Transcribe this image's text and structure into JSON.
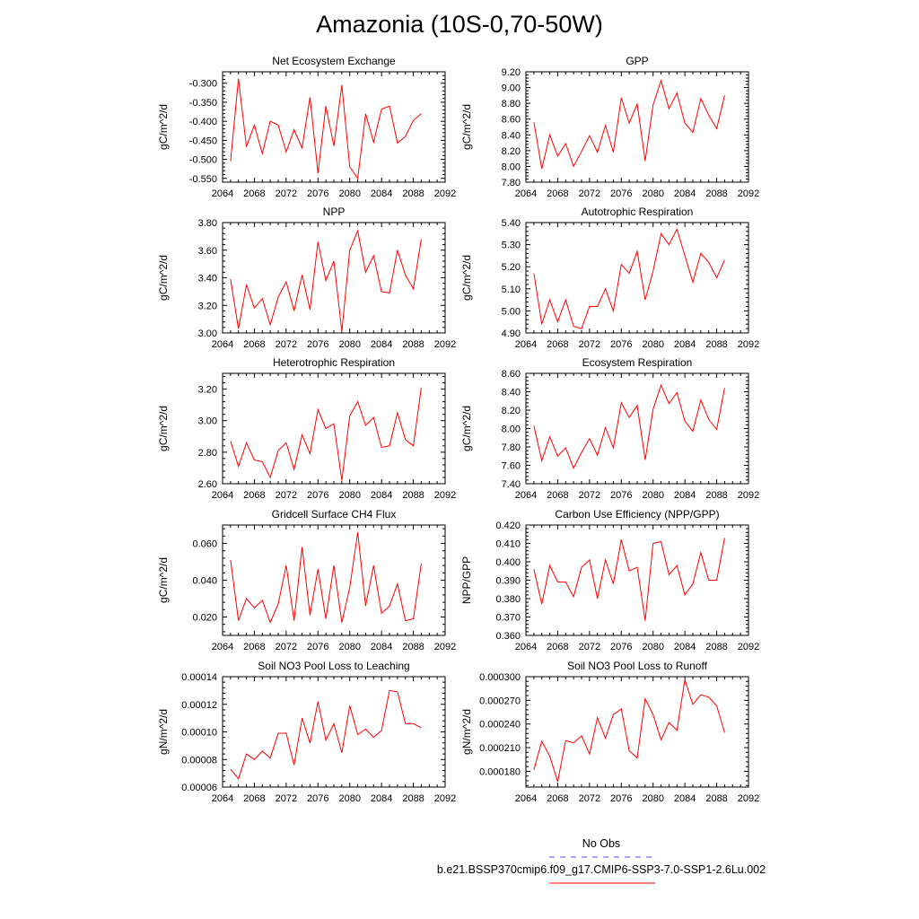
{
  "title": "Amazonia (10S-0,70-50W)",
  "colors": {
    "series": "#ff0000",
    "obs": "#4a4aff"
  },
  "legend": {
    "obs_label": "No Obs",
    "model_label": "b.e21.BSSP370cmip6.f09_g17.CMIP6-SSP3-7.0-SSP1-2.6Lu.002"
  },
  "chart_data": [
    {
      "type": "line",
      "title": "Net Ecosystem Exchange",
      "ylabel": "gC/m^2/d",
      "xlabel": "",
      "xlim": [
        2064,
        2092
      ],
      "xticks": [
        2064,
        2068,
        2072,
        2076,
        2080,
        2084,
        2088,
        2092
      ],
      "ylim": [
        -0.56,
        -0.27
      ],
      "yticks": [
        -0.55,
        -0.5,
        -0.45,
        -0.4,
        -0.35,
        -0.3
      ],
      "ytick_labels": [
        "-0.550",
        "-0.500",
        "-0.450",
        "-0.400",
        "-0.350",
        "-0.300"
      ],
      "x": [
        2065,
        2066,
        2067,
        2068,
        2069,
        2070,
        2071,
        2072,
        2073,
        2074,
        2075,
        2076,
        2077,
        2078,
        2079,
        2080,
        2081,
        2082,
        2083,
        2084,
        2085,
        2086,
        2087,
        2088,
        2089
      ],
      "values": [
        -0.505,
        -0.288,
        -0.467,
        -0.41,
        -0.485,
        -0.4,
        -0.41,
        -0.48,
        -0.422,
        -0.47,
        -0.337,
        -0.537,
        -0.36,
        -0.465,
        -0.305,
        -0.52,
        -0.55,
        -0.38,
        -0.455,
        -0.368,
        -0.36,
        -0.457,
        -0.44,
        -0.398,
        -0.38
      ]
    },
    {
      "type": "line",
      "title": "GPP",
      "ylabel": "gC/m^2/d",
      "xlabel": "",
      "xlim": [
        2064,
        2092
      ],
      "xticks": [
        2064,
        2068,
        2072,
        2076,
        2080,
        2084,
        2088,
        2092
      ],
      "ylim": [
        7.8,
        9.2
      ],
      "yticks": [
        7.8,
        8.0,
        8.2,
        8.4,
        8.6,
        8.8,
        9.0,
        9.2
      ],
      "ytick_labels": [
        "7.80",
        "8.00",
        "8.20",
        "8.40",
        "8.60",
        "8.80",
        "9.00",
        "9.20"
      ],
      "x": [
        2065,
        2066,
        2067,
        2068,
        2069,
        2070,
        2071,
        2072,
        2073,
        2074,
        2075,
        2076,
        2077,
        2078,
        2079,
        2080,
        2081,
        2082,
        2083,
        2084,
        2085,
        2086,
        2087,
        2088,
        2089
      ],
      "values": [
        8.56,
        7.97,
        8.4,
        8.13,
        8.29,
        8.0,
        8.19,
        8.39,
        8.18,
        8.52,
        8.18,
        8.87,
        8.55,
        8.79,
        8.07,
        8.78,
        9.09,
        8.73,
        8.93,
        8.55,
        8.43,
        8.86,
        8.65,
        8.48,
        8.9
      ]
    },
    {
      "type": "line",
      "title": "NPP",
      "ylabel": "gC/m^2/d",
      "xlabel": "",
      "xlim": [
        2064,
        2092
      ],
      "xticks": [
        2064,
        2068,
        2072,
        2076,
        2080,
        2084,
        2088,
        2092
      ],
      "ylim": [
        3.0,
        3.8
      ],
      "yticks": [
        3.0,
        3.2,
        3.4,
        3.6,
        3.8
      ],
      "ytick_labels": [
        "3.00",
        "3.20",
        "3.40",
        "3.60",
        "3.80"
      ],
      "x": [
        2065,
        2066,
        2067,
        2068,
        2069,
        2070,
        2071,
        2072,
        2073,
        2074,
        2075,
        2076,
        2077,
        2078,
        2079,
        2080,
        2081,
        2082,
        2083,
        2084,
        2085,
        2086,
        2087,
        2088,
        2089
      ],
      "values": [
        3.39,
        3.03,
        3.35,
        3.18,
        3.25,
        3.06,
        3.26,
        3.37,
        3.16,
        3.42,
        3.17,
        3.66,
        3.38,
        3.52,
        3.01,
        3.6,
        3.74,
        3.44,
        3.56,
        3.3,
        3.29,
        3.6,
        3.42,
        3.32,
        3.68
      ]
    },
    {
      "type": "line",
      "title": "Autotrophic Respiration",
      "ylabel": "gC/m^2/d",
      "xlabel": "",
      "xlim": [
        2064,
        2092
      ],
      "xticks": [
        2064,
        2068,
        2072,
        2076,
        2080,
        2084,
        2088,
        2092
      ],
      "ylim": [
        4.9,
        5.4
      ],
      "yticks": [
        4.9,
        5.0,
        5.1,
        5.2,
        5.3,
        5.4
      ],
      "ytick_labels": [
        "4.90",
        "5.00",
        "5.10",
        "5.20",
        "5.30",
        "5.40"
      ],
      "x": [
        2065,
        2066,
        2067,
        2068,
        2069,
        2070,
        2071,
        2072,
        2073,
        2074,
        2075,
        2076,
        2077,
        2078,
        2079,
        2080,
        2081,
        2082,
        2083,
        2084,
        2085,
        2086,
        2087,
        2088,
        2089
      ],
      "values": [
        5.17,
        4.94,
        5.05,
        4.95,
        5.05,
        4.93,
        4.92,
        5.02,
        5.02,
        5.1,
        5.0,
        5.21,
        5.17,
        5.27,
        5.05,
        5.18,
        5.35,
        5.3,
        5.37,
        5.25,
        5.13,
        5.26,
        5.22,
        5.15,
        5.23
      ]
    },
    {
      "type": "line",
      "title": "Heterotrophic Respiration",
      "ylabel": "gC/m^2/d",
      "xlabel": "",
      "xlim": [
        2064,
        2092
      ],
      "xticks": [
        2064,
        2068,
        2072,
        2076,
        2080,
        2084,
        2088,
        2092
      ],
      "ylim": [
        2.6,
        3.3
      ],
      "yticks": [
        2.6,
        2.8,
        3.0,
        3.2
      ],
      "ytick_labels": [
        "2.60",
        "2.80",
        "3.00",
        "3.20"
      ],
      "x": [
        2065,
        2066,
        2067,
        2068,
        2069,
        2070,
        2071,
        2072,
        2073,
        2074,
        2075,
        2076,
        2077,
        2078,
        2079,
        2080,
        2081,
        2082,
        2083,
        2084,
        2085,
        2086,
        2087,
        2088,
        2089
      ],
      "values": [
        2.87,
        2.71,
        2.86,
        2.75,
        2.74,
        2.64,
        2.81,
        2.86,
        2.69,
        2.91,
        2.79,
        3.07,
        2.95,
        2.98,
        2.62,
        3.03,
        3.12,
        2.97,
        3.02,
        2.83,
        2.84,
        3.05,
        2.88,
        2.84,
        3.21
      ]
    },
    {
      "type": "line",
      "title": "Ecosystem Respiration",
      "ylabel": "gC/m^2/d",
      "xlabel": "",
      "xlim": [
        2064,
        2092
      ],
      "xticks": [
        2064,
        2068,
        2072,
        2076,
        2080,
        2084,
        2088,
        2092
      ],
      "ylim": [
        7.4,
        8.6
      ],
      "yticks": [
        7.4,
        7.6,
        7.8,
        8.0,
        8.2,
        8.4,
        8.6
      ],
      "ytick_labels": [
        "7.40",
        "7.60",
        "7.80",
        "8.00",
        "8.20",
        "8.40",
        "8.60"
      ],
      "x": [
        2065,
        2066,
        2067,
        2068,
        2069,
        2070,
        2071,
        2072,
        2073,
        2074,
        2075,
        2076,
        2077,
        2078,
        2079,
        2080,
        2081,
        2082,
        2083,
        2084,
        2085,
        2086,
        2087,
        2088,
        2089
      ],
      "values": [
        8.03,
        7.65,
        7.91,
        7.7,
        7.79,
        7.57,
        7.74,
        7.89,
        7.71,
        8.01,
        7.79,
        8.28,
        8.12,
        8.25,
        7.66,
        8.21,
        8.47,
        8.27,
        8.39,
        8.08,
        7.97,
        8.31,
        8.1,
        7.99,
        8.44
      ]
    },
    {
      "type": "line",
      "title": "Gridcell Surface CH4 Flux",
      "ylabel": "gC/m^2/d",
      "xlabel": "",
      "xlim": [
        2064,
        2092
      ],
      "xticks": [
        2064,
        2068,
        2072,
        2076,
        2080,
        2084,
        2088,
        2092
      ],
      "ylim": [
        0.01,
        0.07
      ],
      "yticks": [
        0.02,
        0.04,
        0.06
      ],
      "ytick_labels": [
        "0.020",
        "0.040",
        "0.060"
      ],
      "x": [
        2065,
        2066,
        2067,
        2068,
        2069,
        2070,
        2071,
        2072,
        2073,
        2074,
        2075,
        2076,
        2077,
        2078,
        2079,
        2080,
        2081,
        2082,
        2083,
        2084,
        2085,
        2086,
        2087,
        2088,
        2089
      ],
      "values": [
        0.051,
        0.018,
        0.03,
        0.025,
        0.029,
        0.017,
        0.027,
        0.048,
        0.018,
        0.058,
        0.021,
        0.046,
        0.019,
        0.048,
        0.017,
        0.036,
        0.066,
        0.026,
        0.048,
        0.022,
        0.026,
        0.038,
        0.018,
        0.019,
        0.049
      ]
    },
    {
      "type": "line",
      "title": "Carbon Use Efficiency (NPP/GPP)",
      "ylabel": "NPP/GPP",
      "xlabel": "",
      "xlim": [
        2064,
        2092
      ],
      "xticks": [
        2064,
        2068,
        2072,
        2076,
        2080,
        2084,
        2088,
        2092
      ],
      "ylim": [
        0.36,
        0.42
      ],
      "yticks": [
        0.36,
        0.37,
        0.38,
        0.39,
        0.4,
        0.41,
        0.42
      ],
      "ytick_labels": [
        "0.360",
        "0.370",
        "0.380",
        "0.390",
        "0.400",
        "0.410",
        "0.420"
      ],
      "x": [
        2065,
        2066,
        2067,
        2068,
        2069,
        2070,
        2071,
        2072,
        2073,
        2074,
        2075,
        2076,
        2077,
        2078,
        2079,
        2080,
        2081,
        2082,
        2083,
        2084,
        2085,
        2086,
        2087,
        2088,
        2089
      ],
      "values": [
        0.396,
        0.377,
        0.398,
        0.389,
        0.389,
        0.381,
        0.397,
        0.401,
        0.38,
        0.401,
        0.388,
        0.412,
        0.395,
        0.397,
        0.368,
        0.41,
        0.411,
        0.393,
        0.398,
        0.382,
        0.388,
        0.405,
        0.39,
        0.39,
        0.413
      ]
    },
    {
      "type": "line",
      "title": "Soil NO3 Pool Loss to Leaching",
      "ylabel": "gN/m^2/d",
      "xlabel": "",
      "xlim": [
        2064,
        2092
      ],
      "xticks": [
        2064,
        2068,
        2072,
        2076,
        2080,
        2084,
        2088,
        2092
      ],
      "ylim": [
        6e-05,
        0.00014
      ],
      "yticks": [
        6e-05,
        8e-05,
        0.0001,
        0.00012,
        0.00014
      ],
      "ytick_labels": [
        "0.00006",
        "0.00008",
        "0.00010",
        "0.00012",
        "0.00014"
      ],
      "x": [
        2065,
        2066,
        2067,
        2068,
        2069,
        2070,
        2071,
        2072,
        2073,
        2074,
        2075,
        2076,
        2077,
        2078,
        2079,
        2080,
        2081,
        2082,
        2083,
        2084,
        2085,
        2086,
        2087,
        2088,
        2089
      ],
      "values": [
        7.3e-05,
        6.6e-05,
        8.4e-05,
        8e-05,
        8.6e-05,
        8.1e-05,
        9.9e-05,
        9.9e-05,
        7.6e-05,
        0.00011,
        9.2e-05,
        0.000122,
        9.4e-05,
        0.000106,
        8.5e-05,
        0.000119,
        9.8e-05,
        0.000102,
        9.6e-05,
        0.000101,
        0.00013,
        0.000129,
        0.000106,
        0.000106,
        0.000103
      ]
    },
    {
      "type": "line",
      "title": "Soil NO3 Pool Loss to Runoff",
      "ylabel": "gN/m^2/d",
      "xlabel": "",
      "xlim": [
        2064,
        2092
      ],
      "xticks": [
        2064,
        2068,
        2072,
        2076,
        2080,
        2084,
        2088,
        2092
      ],
      "ylim": [
        0.00016,
        0.0003
      ],
      "yticks": [
        0.00018,
        0.00021,
        0.00024,
        0.00027,
        0.0003
      ],
      "ytick_labels": [
        "0.000180",
        "0.000210",
        "0.000240",
        "0.000270",
        "0.000300"
      ],
      "x": [
        2065,
        2066,
        2067,
        2068,
        2069,
        2070,
        2071,
        2072,
        2073,
        2074,
        2075,
        2076,
        2077,
        2078,
        2079,
        2080,
        2081,
        2082,
        2083,
        2084,
        2085,
        2086,
        2087,
        2088,
        2089
      ],
      "values": [
        0.000182,
        0.000218,
        0.000199,
        0.000167,
        0.000219,
        0.000216,
        0.000225,
        0.000202,
        0.000248,
        0.000222,
        0.000252,
        0.000259,
        0.000206,
        0.000197,
        0.000272,
        0.000252,
        0.00022,
        0.000242,
        0.000232,
        0.000296,
        0.000265,
        0.000277,
        0.000274,
        0.000263,
        0.000229
      ]
    }
  ]
}
